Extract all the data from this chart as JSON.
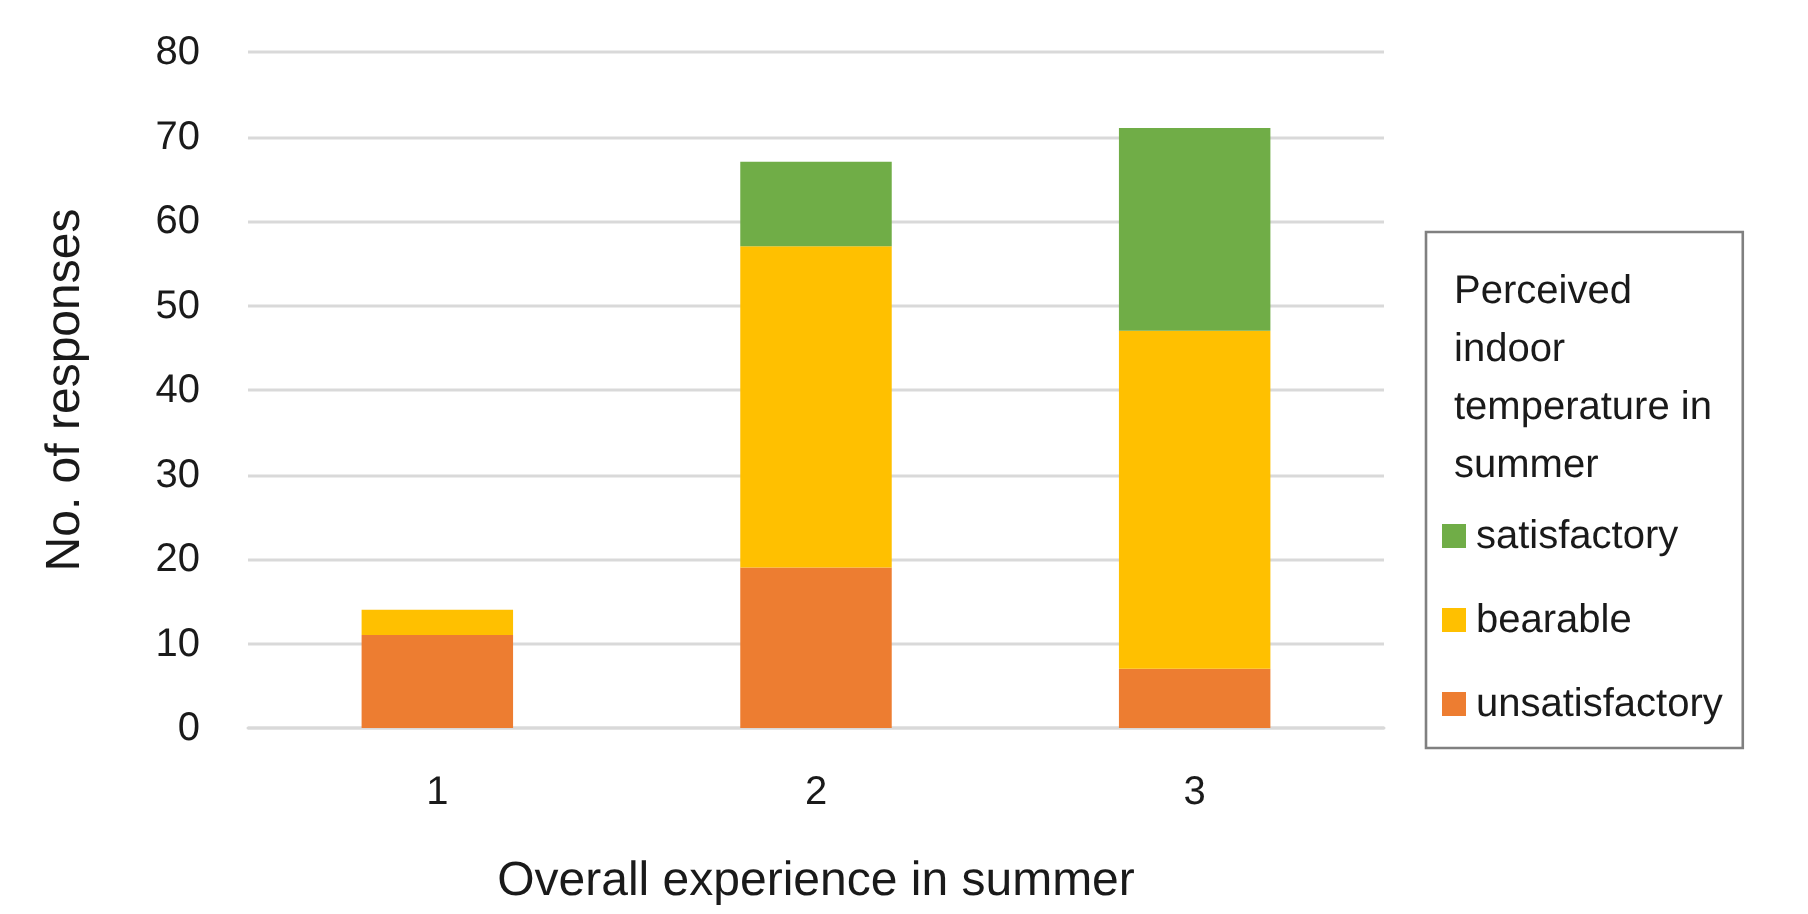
{
  "chart_data": {
    "type": "bar",
    "stacked": true,
    "categories": [
      "1",
      "2",
      "3"
    ],
    "series": [
      {
        "name": "unsatisfactory",
        "color": "#ed7d31",
        "values": [
          11,
          19,
          7
        ]
      },
      {
        "name": "bearable",
        "color": "#ffc000",
        "values": [
          3,
          38,
          40
        ]
      },
      {
        "name": "satisfactory",
        "color": "#70ad47",
        "values": [
          0,
          10,
          24
        ]
      }
    ],
    "xlabel": "Overall experience in summer",
    "ylabel": "No. of responses",
    "legend_title": "Perceived indoor temperature in summer",
    "ylim": [
      0,
      80
    ],
    "yticks": [
      0,
      10,
      20,
      30,
      40,
      50,
      60,
      70,
      80
    ],
    "grid": "y",
    "legend": "right"
  }
}
